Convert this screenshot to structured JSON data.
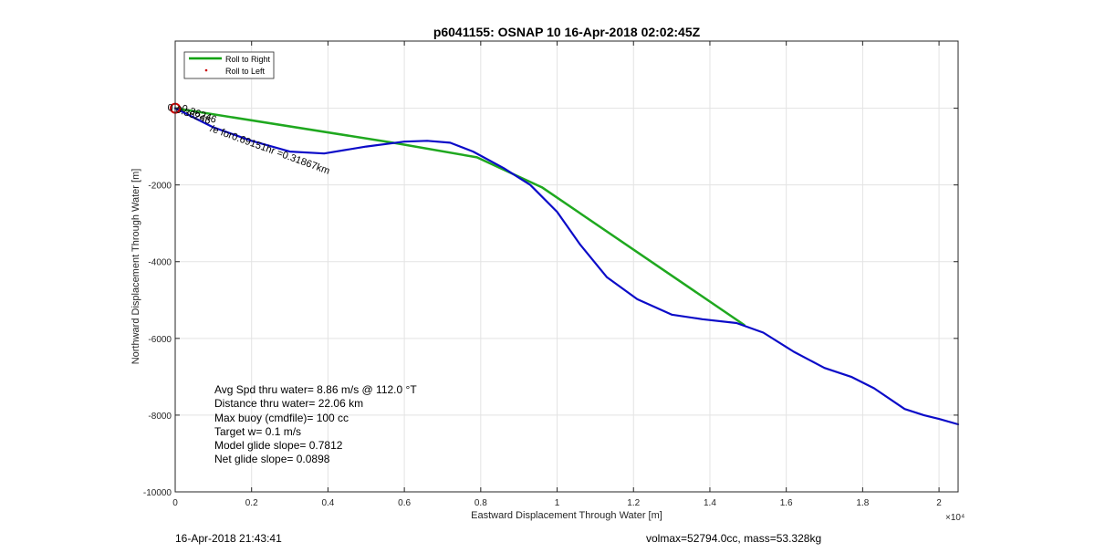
{
  "chart_data": {
    "type": "line",
    "title": "p6041155: OSNAP 10 16-Apr-2018 02:02:45Z",
    "xlabel": "Eastward Displacement Through Water [m]",
    "ylabel": "Northward Displacement Through Water [m]",
    "x_exponent_label": "×10⁴",
    "xlim": [
      0,
      20500
    ],
    "ylim": [
      -10000,
      1750
    ],
    "x_ticks": [
      0,
      2000,
      4000,
      6000,
      8000,
      10000,
      12000,
      14000,
      16000,
      18000,
      20000
    ],
    "x_tick_labels": [
      "0",
      "0.2",
      "0.4",
      "0.6",
      "0.8",
      "1",
      "1.2",
      "1.4",
      "1.6",
      "1.8",
      "2"
    ],
    "y_ticks": [
      -10000,
      -8000,
      -6000,
      -4000,
      -2000,
      0
    ],
    "y_tick_labels": [
      "-10000",
      "-8000",
      "-6000",
      "-4000",
      "-2000",
      ""
    ],
    "grid": true,
    "legend": {
      "position": "top-left",
      "entries": [
        {
          "label": "Roll to Right",
          "color": "#00a000",
          "style": "line"
        },
        {
          "label": "Roll to Left",
          "color": "#cc0000",
          "style": "dot"
        }
      ]
    },
    "series": [
      {
        "name": "Roll to Right",
        "color": "#1fa81f",
        "x": [
          0,
          5700,
          7900,
          9600,
          14900
        ],
        "y": [
          0,
          -900,
          -1280,
          -2060,
          -5650
        ]
      },
      {
        "color": "#0b0bc8",
        "x": [
          0,
          500,
          1000,
          2000,
          3000,
          3900,
          5000,
          6000,
          6600,
          7200,
          7800,
          8600,
          9300,
          10000,
          10600,
          11300,
          12100,
          13000,
          13800,
          14700,
          15400,
          16200,
          17000,
          17700,
          18300,
          19100,
          19600,
          20000,
          20500
        ],
        "y": [
          0,
          -250,
          -500,
          -850,
          -1130,
          -1180,
          -1000,
          -870,
          -850,
          -900,
          -1130,
          -1560,
          -2000,
          -2700,
          -3550,
          -4400,
          -4980,
          -5380,
          -5500,
          -5600,
          -5850,
          -6350,
          -6770,
          -7000,
          -7300,
          -7840,
          -8000,
          -8100,
          -8240
        ]
      }
    ],
    "markers": [
      {
        "x": 0,
        "y": 0,
        "shape": "circle",
        "color": "#cc0000"
      }
    ],
    "annotations": [
      {
        "text": "0",
        "x": -200,
        "y": 30
      },
      {
        "text": "0.36246",
        "x": 0,
        "y": 0,
        "rotation": 20
      },
      {
        "text": "0.36246",
        "x": 150,
        "y": 30,
        "rotation": 20
      },
      {
        "text": "/e for0.69151hr =0.31867km",
        "x": 900,
        "y": -500,
        "rotation": 20
      }
    ]
  },
  "stats": [
    "Avg Spd thru water=  8.86 m/s @ 112.0 °T",
    "Distance thru water= 22.06 km",
    "Max buoy (cmdfile)= 100 cc",
    "Target w= 0.1 m/s",
    "Model glide slope= 0.7812",
    "Net glide slope= 0.0898"
  ],
  "footer": {
    "timestamp": "16-Apr-2018 21:43:41",
    "info": "volmax=52794.0cc, mass=53.328kg"
  }
}
